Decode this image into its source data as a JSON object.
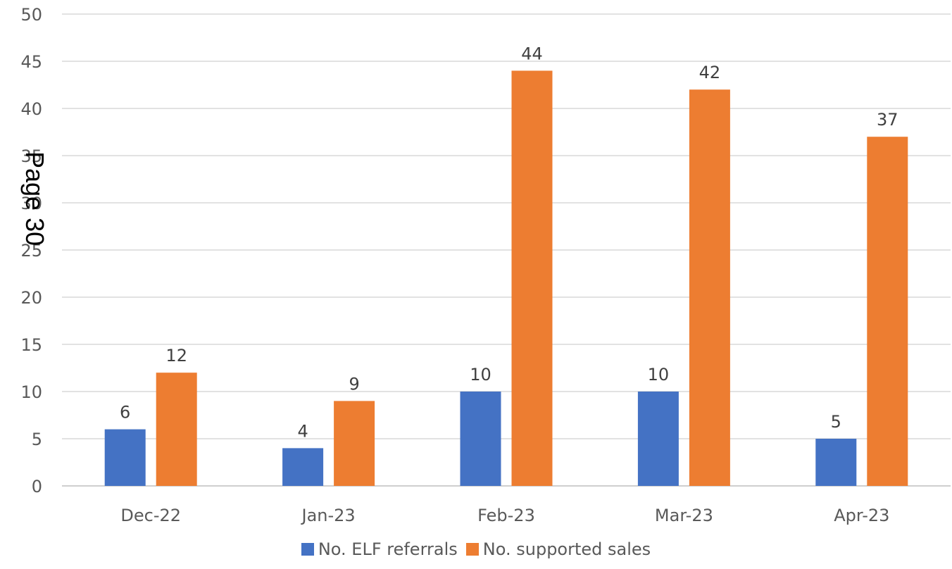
{
  "page_label": "Page 30",
  "chart_data": {
    "type": "bar",
    "categories": [
      "Dec-22",
      "Jan-23",
      "Feb-23",
      "Mar-23",
      "Apr-23"
    ],
    "series": [
      {
        "name": "No. ELF referrals",
        "values": [
          6,
          4,
          10,
          10,
          5
        ],
        "color": "#4472C4"
      },
      {
        "name": "No. supported sales",
        "values": [
          12,
          9,
          44,
          42,
          37
        ],
        "color": "#ED7D31"
      }
    ],
    "ylim": [
      0,
      50
    ],
    "yticks": [
      0,
      5,
      10,
      15,
      20,
      25,
      30,
      35,
      40,
      45,
      50
    ],
    "grid": true,
    "legend_position": "bottom",
    "data_labels": true
  }
}
